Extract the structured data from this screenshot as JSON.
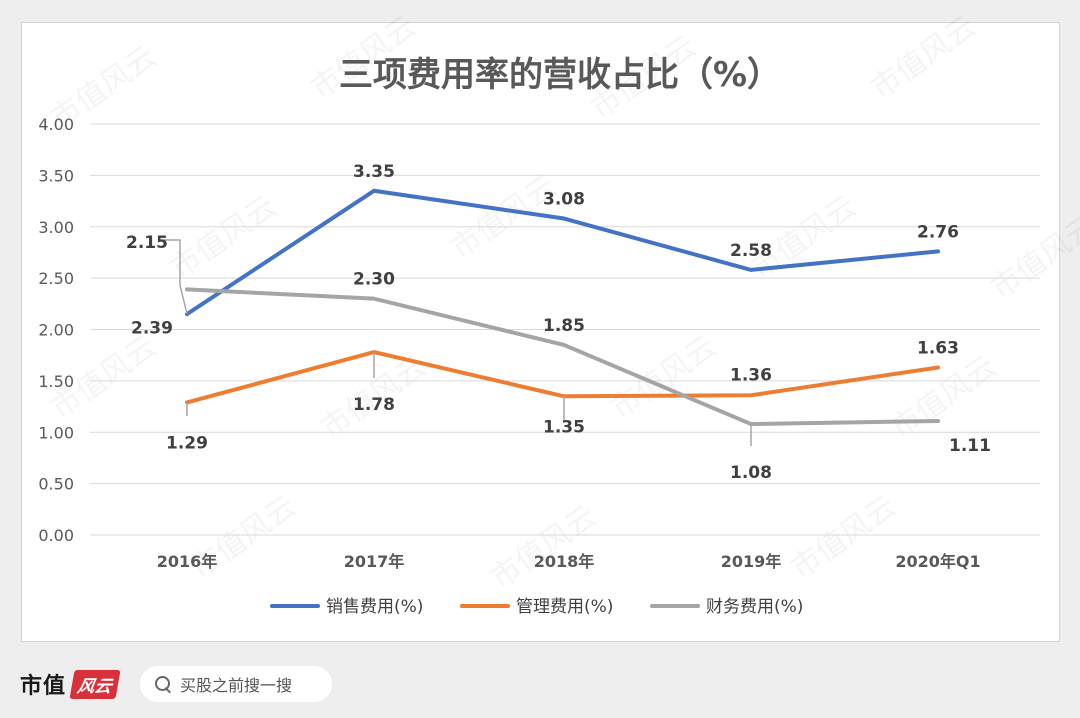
{
  "chart_data": {
    "type": "line",
    "title": "三项费用率的营收占比（%）",
    "categories": [
      "2016年",
      "2017年",
      "2018年",
      "2019年",
      "2020年Q1"
    ],
    "ylim": [
      0,
      4
    ],
    "yticks": [
      "0.00",
      "0.50",
      "1.00",
      "1.50",
      "2.00",
      "2.50",
      "3.00",
      "3.50",
      "4.00"
    ],
    "grid": true,
    "legend_position": "bottom",
    "series": [
      {
        "name": "销售费用(%)",
        "color": "#4472c4",
        "values": [
          2.15,
          3.35,
          3.08,
          2.58,
          2.76
        ],
        "labels": [
          "2.15",
          "3.35",
          "3.08",
          "2.58",
          "2.76"
        ]
      },
      {
        "name": "管理费用(%)",
        "color": "#ed7d31",
        "values": [
          1.29,
          1.78,
          1.35,
          1.36,
          1.63
        ],
        "labels": [
          "1.29",
          "1.78",
          "1.35",
          "1.36",
          "1.63"
        ]
      },
      {
        "name": "财务费用(%)",
        "color": "#a5a5a5",
        "values": [
          2.39,
          2.3,
          1.85,
          1.08,
          1.11
        ],
        "labels": [
          "2.39",
          "2.30",
          "1.85",
          "1.08",
          "1.11"
        ]
      }
    ]
  },
  "watermark_text": "市值风云",
  "footer": {
    "brand": "市值",
    "brand_mark": "风云",
    "search_text": "买股之前搜一搜"
  }
}
